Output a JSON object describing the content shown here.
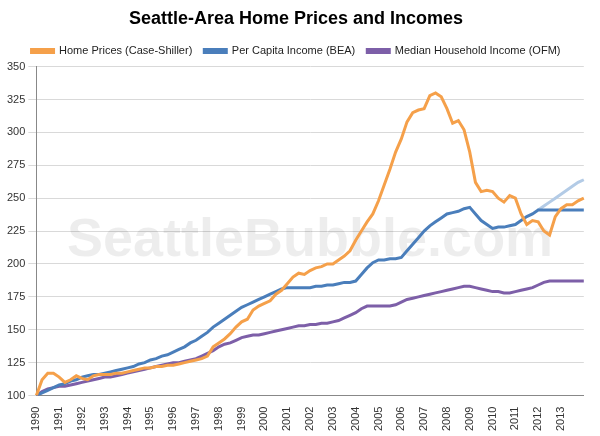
{
  "chart_data": {
    "type": "line",
    "title": "Seattle-Area Home Prices and Incomes",
    "annotations": [
      "SeattleBubble.com"
    ],
    "categories": [
      "1990",
      null,
      null,
      null,
      "1991",
      null,
      null,
      null,
      "1992",
      null,
      null,
      null,
      "1993",
      null,
      null,
      null,
      "1994",
      null,
      null,
      null,
      "1995",
      null,
      null,
      null,
      "1996",
      null,
      null,
      null,
      "1997",
      null,
      null,
      null,
      "1998",
      null,
      null,
      null,
      "1999",
      null,
      null,
      null,
      "2000",
      null,
      null,
      null,
      "2001",
      null,
      null,
      null,
      "2002",
      null,
      null,
      null,
      "2003",
      null,
      null,
      null,
      "2004",
      null,
      null,
      null,
      "2005",
      null,
      null,
      null,
      "2006",
      null,
      null,
      null,
      "2007",
      null,
      null,
      null,
      "2008",
      null,
      null,
      null,
      "2009",
      null,
      null,
      null,
      "2010",
      null,
      null,
      null,
      "2011",
      null,
      null,
      null,
      "2012",
      null,
      null,
      null,
      "2013",
      null,
      null,
      null,
      null
    ],
    "series": [
      {
        "name": "Home Prices (Case-Shiller)",
        "color": "#f5a04a",
        "values": [
          100,
          112,
          117,
          117,
          114,
          110,
          112,
          115,
          113,
          112,
          115,
          116,
          116,
          116,
          117,
          117,
          118,
          119,
          120,
          121,
          121,
          122,
          122,
          123,
          123,
          124,
          125,
          126,
          127,
          128,
          130,
          137,
          140,
          143,
          147,
          152,
          156,
          158,
          165,
          168,
          170,
          172,
          177,
          180,
          185,
          190,
          193,
          192,
          195,
          197,
          198,
          200,
          200,
          203,
          206,
          210,
          218,
          225,
          232,
          238,
          248,
          260,
          272,
          285,
          295,
          308,
          315,
          317,
          318,
          328,
          330,
          327,
          318,
          307,
          309,
          302,
          285,
          262,
          255,
          256,
          255,
          250,
          247,
          252,
          250,
          238,
          230,
          233,
          232,
          225,
          222,
          236,
          242,
          245,
          245,
          248,
          250
        ]
      },
      {
        "name": "Per Capita Income (BEA)",
        "color": "#4a7ebb",
        "values": [
          100,
          102,
          104,
          106,
          108,
          109,
          111,
          112,
          114,
          115,
          116,
          116,
          117,
          118,
          119,
          120,
          121,
          122,
          124,
          125,
          127,
          128,
          130,
          131,
          133,
          135,
          137,
          140,
          142,
          145,
          148,
          152,
          155,
          158,
          161,
          164,
          167,
          169,
          171,
          173,
          175,
          177,
          179,
          181,
          182,
          182,
          182,
          182,
          182,
          183,
          183,
          184,
          184,
          185,
          186,
          186,
          187,
          192,
          197,
          201,
          203,
          203,
          204,
          204,
          205,
          210,
          215,
          220,
          225,
          229,
          232,
          235,
          238,
          239,
          240,
          242,
          243,
          238,
          233,
          230,
          227,
          228,
          228,
          229,
          230,
          233,
          236,
          238,
          241,
          241,
          241,
          241,
          241,
          241,
          241,
          241,
          241
        ]
      },
      {
        "name": "Median Household Income (OFM)",
        "color": "#7d5fa8",
        "values": [
          100,
          103,
          105,
          106,
          107,
          107,
          108,
          109,
          110,
          111,
          112,
          113,
          114,
          114,
          115,
          116,
          117,
          118,
          119,
          120,
          121,
          122,
          123,
          124,
          125,
          125,
          126,
          127,
          128,
          130,
          132,
          134,
          137,
          139,
          140,
          142,
          144,
          145,
          146,
          146,
          147,
          148,
          149,
          150,
          151,
          152,
          153,
          153,
          154,
          154,
          155,
          155,
          156,
          157,
          159,
          161,
          163,
          166,
          168,
          168,
          168,
          168,
          168,
          169,
          171,
          173,
          174,
          175,
          176,
          177,
          178,
          179,
          180,
          181,
          182,
          183,
          183,
          182,
          181,
          180,
          179,
          179,
          178,
          178,
          179,
          180,
          181,
          182,
          184,
          186,
          187,
          187,
          187,
          187,
          187,
          187,
          187
        ]
      },
      {
        "color": "#b3cbe6",
        "values": [
          null,
          null,
          null,
          null,
          null,
          null,
          null,
          null,
          null,
          null,
          null,
          null,
          null,
          null,
          null,
          null,
          null,
          null,
          null,
          null,
          null,
          null,
          null,
          null,
          null,
          null,
          null,
          null,
          null,
          null,
          null,
          null,
          null,
          null,
          null,
          null,
          null,
          null,
          null,
          null,
          null,
          null,
          null,
          null,
          null,
          null,
          null,
          null,
          null,
          null,
          null,
          null,
          null,
          null,
          null,
          null,
          null,
          null,
          null,
          null,
          null,
          null,
          null,
          null,
          null,
          null,
          null,
          null,
          null,
          null,
          null,
          null,
          null,
          null,
          null,
          null,
          null,
          null,
          null,
          null,
          null,
          null,
          null,
          null,
          null,
          null,
          null,
          null,
          241,
          244,
          247,
          250,
          253,
          256,
          259,
          262,
          264
        ]
      }
    ],
    "ylim": [
      100,
      350
    ],
    "yticks": [
      100,
      125,
      150,
      175,
      200,
      225,
      250,
      275,
      300,
      325,
      350
    ],
    "grid": true,
    "legend": "top"
  }
}
